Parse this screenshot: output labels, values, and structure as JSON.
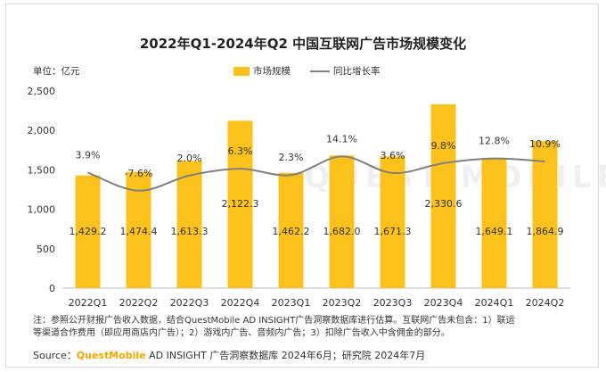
{
  "chart_data": {
    "type": "bar",
    "title": "2022年Q1-2024年Q2 中国互联网广告市场规模变化",
    "unit_label": "单位：亿元",
    "categories": [
      "2022Q1",
      "2022Q2",
      "2022Q3",
      "2022Q4",
      "2023Q1",
      "2023Q2",
      "2023Q3",
      "2023Q4",
      "2024Q1",
      "2024Q2"
    ],
    "series": [
      {
        "name": "市场规模",
        "type": "bar",
        "color": "#fcc21b",
        "values": [
          1429.2,
          1474.4,
          1613.3,
          2122.3,
          1462.2,
          1682.0,
          1671.3,
          2330.6,
          1649.1,
          1864.9
        ],
        "labels": [
          "1,429.2",
          "1,474.4",
          "1,613.3",
          "2,122.3",
          "1,462.2",
          "1,682.0",
          "1,671.3",
          "2,330.6",
          "1,649.1",
          "1,864.9"
        ]
      },
      {
        "name": "同比增长率",
        "type": "line",
        "color": "#7f7f7f",
        "values": [
          3.9,
          -7.6,
          2.0,
          6.3,
          2.3,
          14.1,
          3.6,
          9.8,
          12.8,
          10.9
        ],
        "labels": [
          "3.9%",
          "-7.6%",
          "2.0%",
          "6.3%",
          "2.3%",
          "14.1%",
          "3.6%",
          "9.8%",
          "12.8%",
          "10.9%"
        ]
      }
    ],
    "ylim": [
      0,
      2500
    ],
    "yticks": [
      0,
      500,
      1000,
      1500,
      2000,
      2500
    ],
    "ytick_labels": [
      "0",
      "500",
      "1,000",
      "1,500",
      "2,000",
      "2,500"
    ],
    "grid": false,
    "legend_position": "top-center"
  },
  "footer": {
    "note_line1": "注：参照公开财报广告收入数据，结合QuestMobile AD INSIGHT广告洞察数据库进行估算。互联网广告未包含：1）联运",
    "note_line2": "等渠道合作费用（即应用商店内广告）；2）游戏内广告、音频内广告；3）扣除广告收入中含佣金的部分。",
    "source_prefix": "Source：",
    "source_brand": "QuestMobile",
    "source_rest": " AD INSIGHT 广告洞察数据库 2024年6月；研究院 2024年7月"
  },
  "watermark": "QUEST MOBILE"
}
